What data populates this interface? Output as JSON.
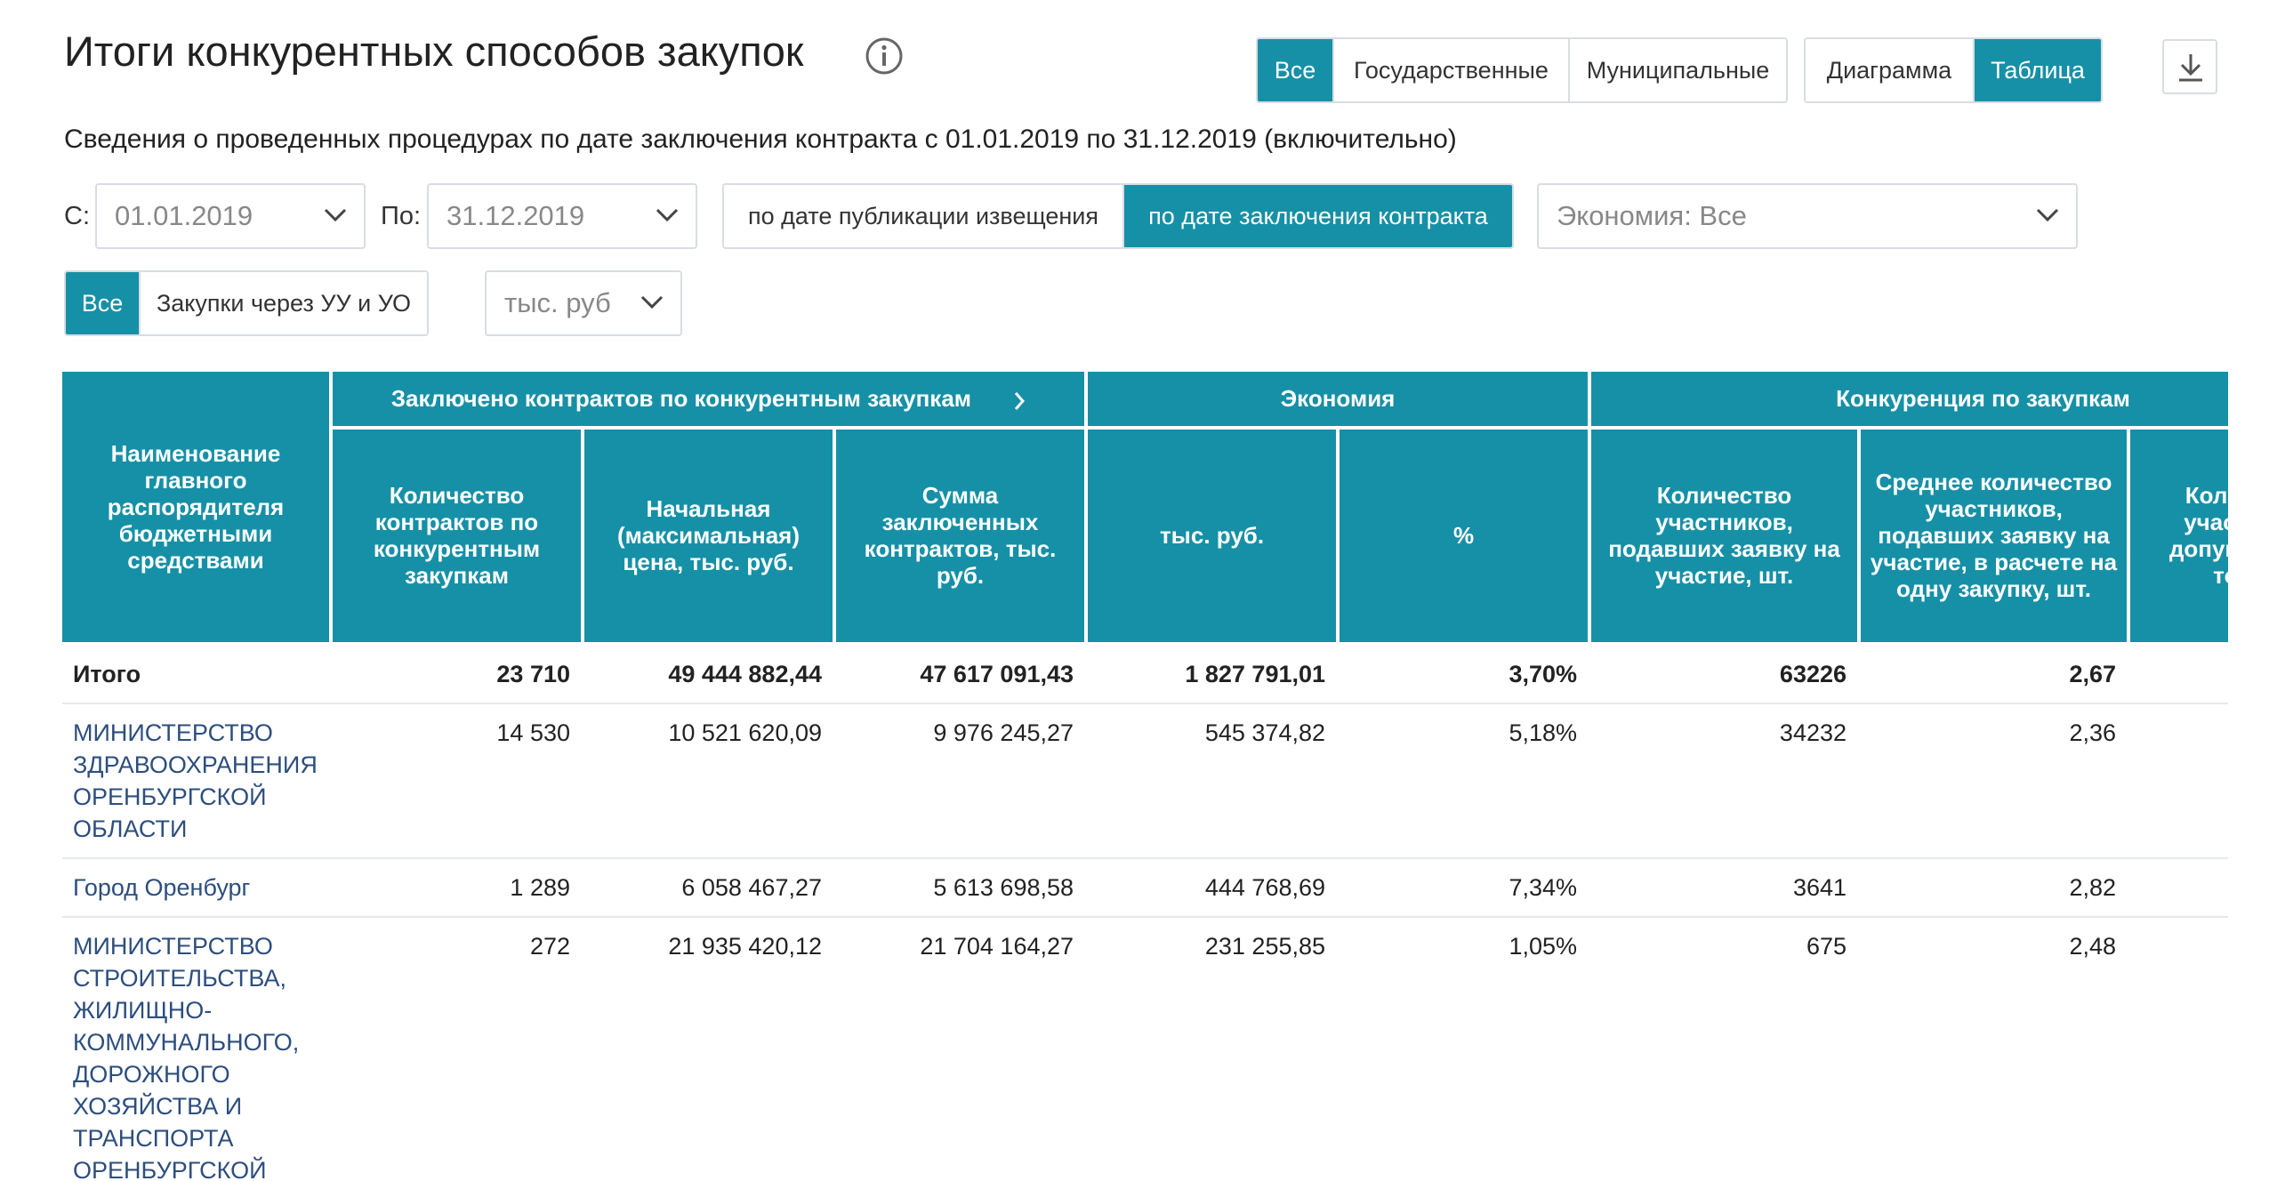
{
  "header": {
    "title": "Итоги конкурентных способов закупок",
    "level_filter": [
      "Все",
      "Государственные",
      "Муниципальные"
    ],
    "level_active": 0,
    "view_toggle": [
      "Диаграмма",
      "Таблица"
    ],
    "view_active": 1
  },
  "subtitle": "Сведения о проведенных процедурах по дате заключения контракта с 01.01.2019 по 31.12.2019 (включительно)",
  "filters": {
    "from_label": "С:",
    "from_value": "01.01.2019",
    "to_label": "По:",
    "to_value": "31.12.2019",
    "date_mode": [
      "по дате публикации извещения",
      "по дате заключения контракта"
    ],
    "date_mode_active": 1,
    "economy_select": "Экономия: Все",
    "purchase_filter": [
      "Все",
      "Закупки через УУ и УО"
    ],
    "purchase_active": 0,
    "unit_select": "тыс. руб"
  },
  "table": {
    "name_header": "Наименование главного распорядителя бюджетными средствами",
    "groups": [
      "Заключено контрактов по конкурентным закупкам",
      "Экономия",
      "Конкуренция по закупкам"
    ],
    "columns": [
      "Количество контрактов по конкурентным закупкам",
      "Начальная (максимальная) цена, тыс. руб.",
      "Сумма заключенных контрактов, тыс. руб.",
      "тыс. руб.",
      "%",
      "Количество участников, подавших заявку на участие, шт.",
      "Среднее количество участников, подавших заявку на участие, в расчете на одну закупку, шт.",
      "Количество участников, допущенных к торгам"
    ],
    "total": {
      "name": "Итого",
      "values": [
        "23 710",
        "49 444 882,44",
        "47 617 091,43",
        "1 827 791,01",
        "3,70%",
        "63226",
        "2,67",
        ""
      ]
    },
    "rows": [
      {
        "name": "Министерство здравоохранения Оренбургской области",
        "values": [
          "14 530",
          "10 521 620,09",
          "9 976 245,27",
          "545 374,82",
          "5,18%",
          "34232",
          "2,36",
          ""
        ]
      },
      {
        "name": "Город Оренбург",
        "values": [
          "1 289",
          "6 058 467,27",
          "5 613 698,58",
          "444 768,69",
          "7,34%",
          "3641",
          "2,82",
          ""
        ]
      },
      {
        "name": "Министерство строительства, жилищно-коммунального, дорожного хозяйства и транспорта Оренбургской области",
        "values": [
          "272",
          "21 935 420,12",
          "21 704 164,27",
          "231 255,85",
          "1,05%",
          "675",
          "2,48",
          ""
        ]
      }
    ]
  }
}
